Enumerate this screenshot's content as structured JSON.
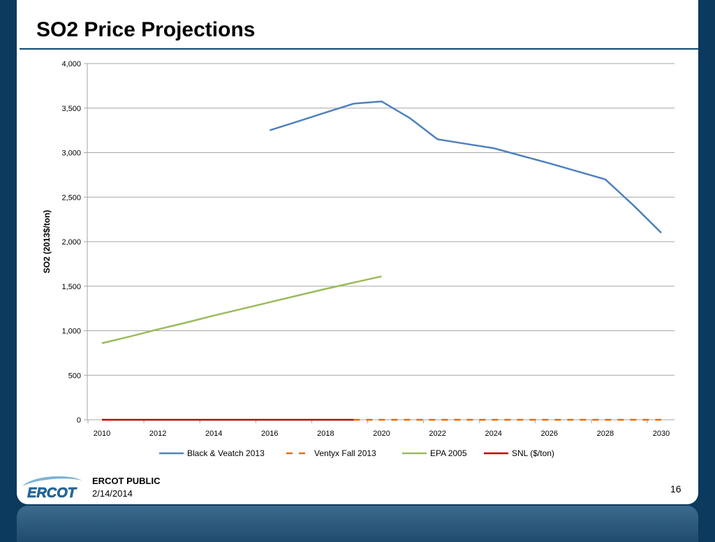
{
  "slide": {
    "title": "SO2 Price Projections",
    "footer_label": "ERCOT PUBLIC",
    "footer_date": "2/14/2014",
    "page_number": "16",
    "logo_text": "ERCOT"
  },
  "colors": {
    "background": "#0b3a5e",
    "title_rule": "#0b4a6e",
    "grid": "#a6a6a6"
  },
  "chart_data": {
    "type": "line",
    "title": "",
    "xlabel": "",
    "ylabel": "SO2 (2013$/ton)",
    "xlim": [
      2010,
      2030
    ],
    "ylim": [
      0,
      4000
    ],
    "x_ticks": [
      2010,
      2012,
      2014,
      2016,
      2018,
      2020,
      2022,
      2024,
      2026,
      2028,
      2030
    ],
    "y_ticks": [
      0,
      500,
      1000,
      1500,
      2000,
      2500,
      3000,
      3500,
      4000
    ],
    "y_tick_labels": [
      "0",
      "500",
      "1,000",
      "1,500",
      "2,000",
      "2,500",
      "3,000",
      "3,500",
      "4,000"
    ],
    "grid": "horizontal",
    "legend_position": "bottom",
    "series": [
      {
        "name": "Black & Veatch 2013",
        "color": "#4f81bd",
        "dash": "solid",
        "points": [
          [
            2016,
            3250
          ],
          [
            2017,
            3350
          ],
          [
            2018,
            3450
          ],
          [
            2019,
            3550
          ],
          [
            2020,
            3575
          ],
          [
            2021,
            3390
          ],
          [
            2022,
            3150
          ],
          [
            2023,
            3100
          ],
          [
            2024,
            3050
          ],
          [
            2025,
            2965
          ],
          [
            2026,
            2880
          ],
          [
            2027,
            2790
          ],
          [
            2028,
            2700
          ],
          [
            2029,
            2410
          ],
          [
            2030,
            2100
          ]
        ]
      },
      {
        "name": "Ventyx Fall 2013",
        "color": "#e46c0a",
        "dash": "dashed",
        "points": [
          [
            2019,
            0
          ],
          [
            2020,
            0
          ],
          [
            2021,
            0
          ],
          [
            2022,
            0
          ],
          [
            2023,
            0
          ],
          [
            2024,
            0
          ],
          [
            2025,
            0
          ],
          [
            2026,
            0
          ],
          [
            2027,
            0
          ],
          [
            2028,
            0
          ],
          [
            2029,
            0
          ],
          [
            2030,
            0
          ]
        ]
      },
      {
        "name": "EPA 2005",
        "color": "#9bbb59",
        "dash": "solid",
        "points": [
          [
            2010,
            860
          ],
          [
            2011,
            935
          ],
          [
            2012,
            1015
          ],
          [
            2013,
            1090
          ],
          [
            2014,
            1170
          ],
          [
            2015,
            1245
          ],
          [
            2016,
            1320
          ],
          [
            2017,
            1395
          ],
          [
            2018,
            1470
          ],
          [
            2019,
            1540
          ],
          [
            2020,
            1610
          ]
        ]
      },
      {
        "name": "SNL ($/ton)",
        "color": "#c00000",
        "dash": "solid",
        "points": [
          [
            2010,
            0
          ],
          [
            2011,
            0
          ],
          [
            2012,
            0
          ],
          [
            2013,
            0
          ],
          [
            2014,
            0
          ],
          [
            2015,
            0
          ],
          [
            2016,
            0
          ],
          [
            2017,
            0
          ],
          [
            2018,
            0
          ],
          [
            2019,
            0
          ]
        ]
      }
    ]
  }
}
